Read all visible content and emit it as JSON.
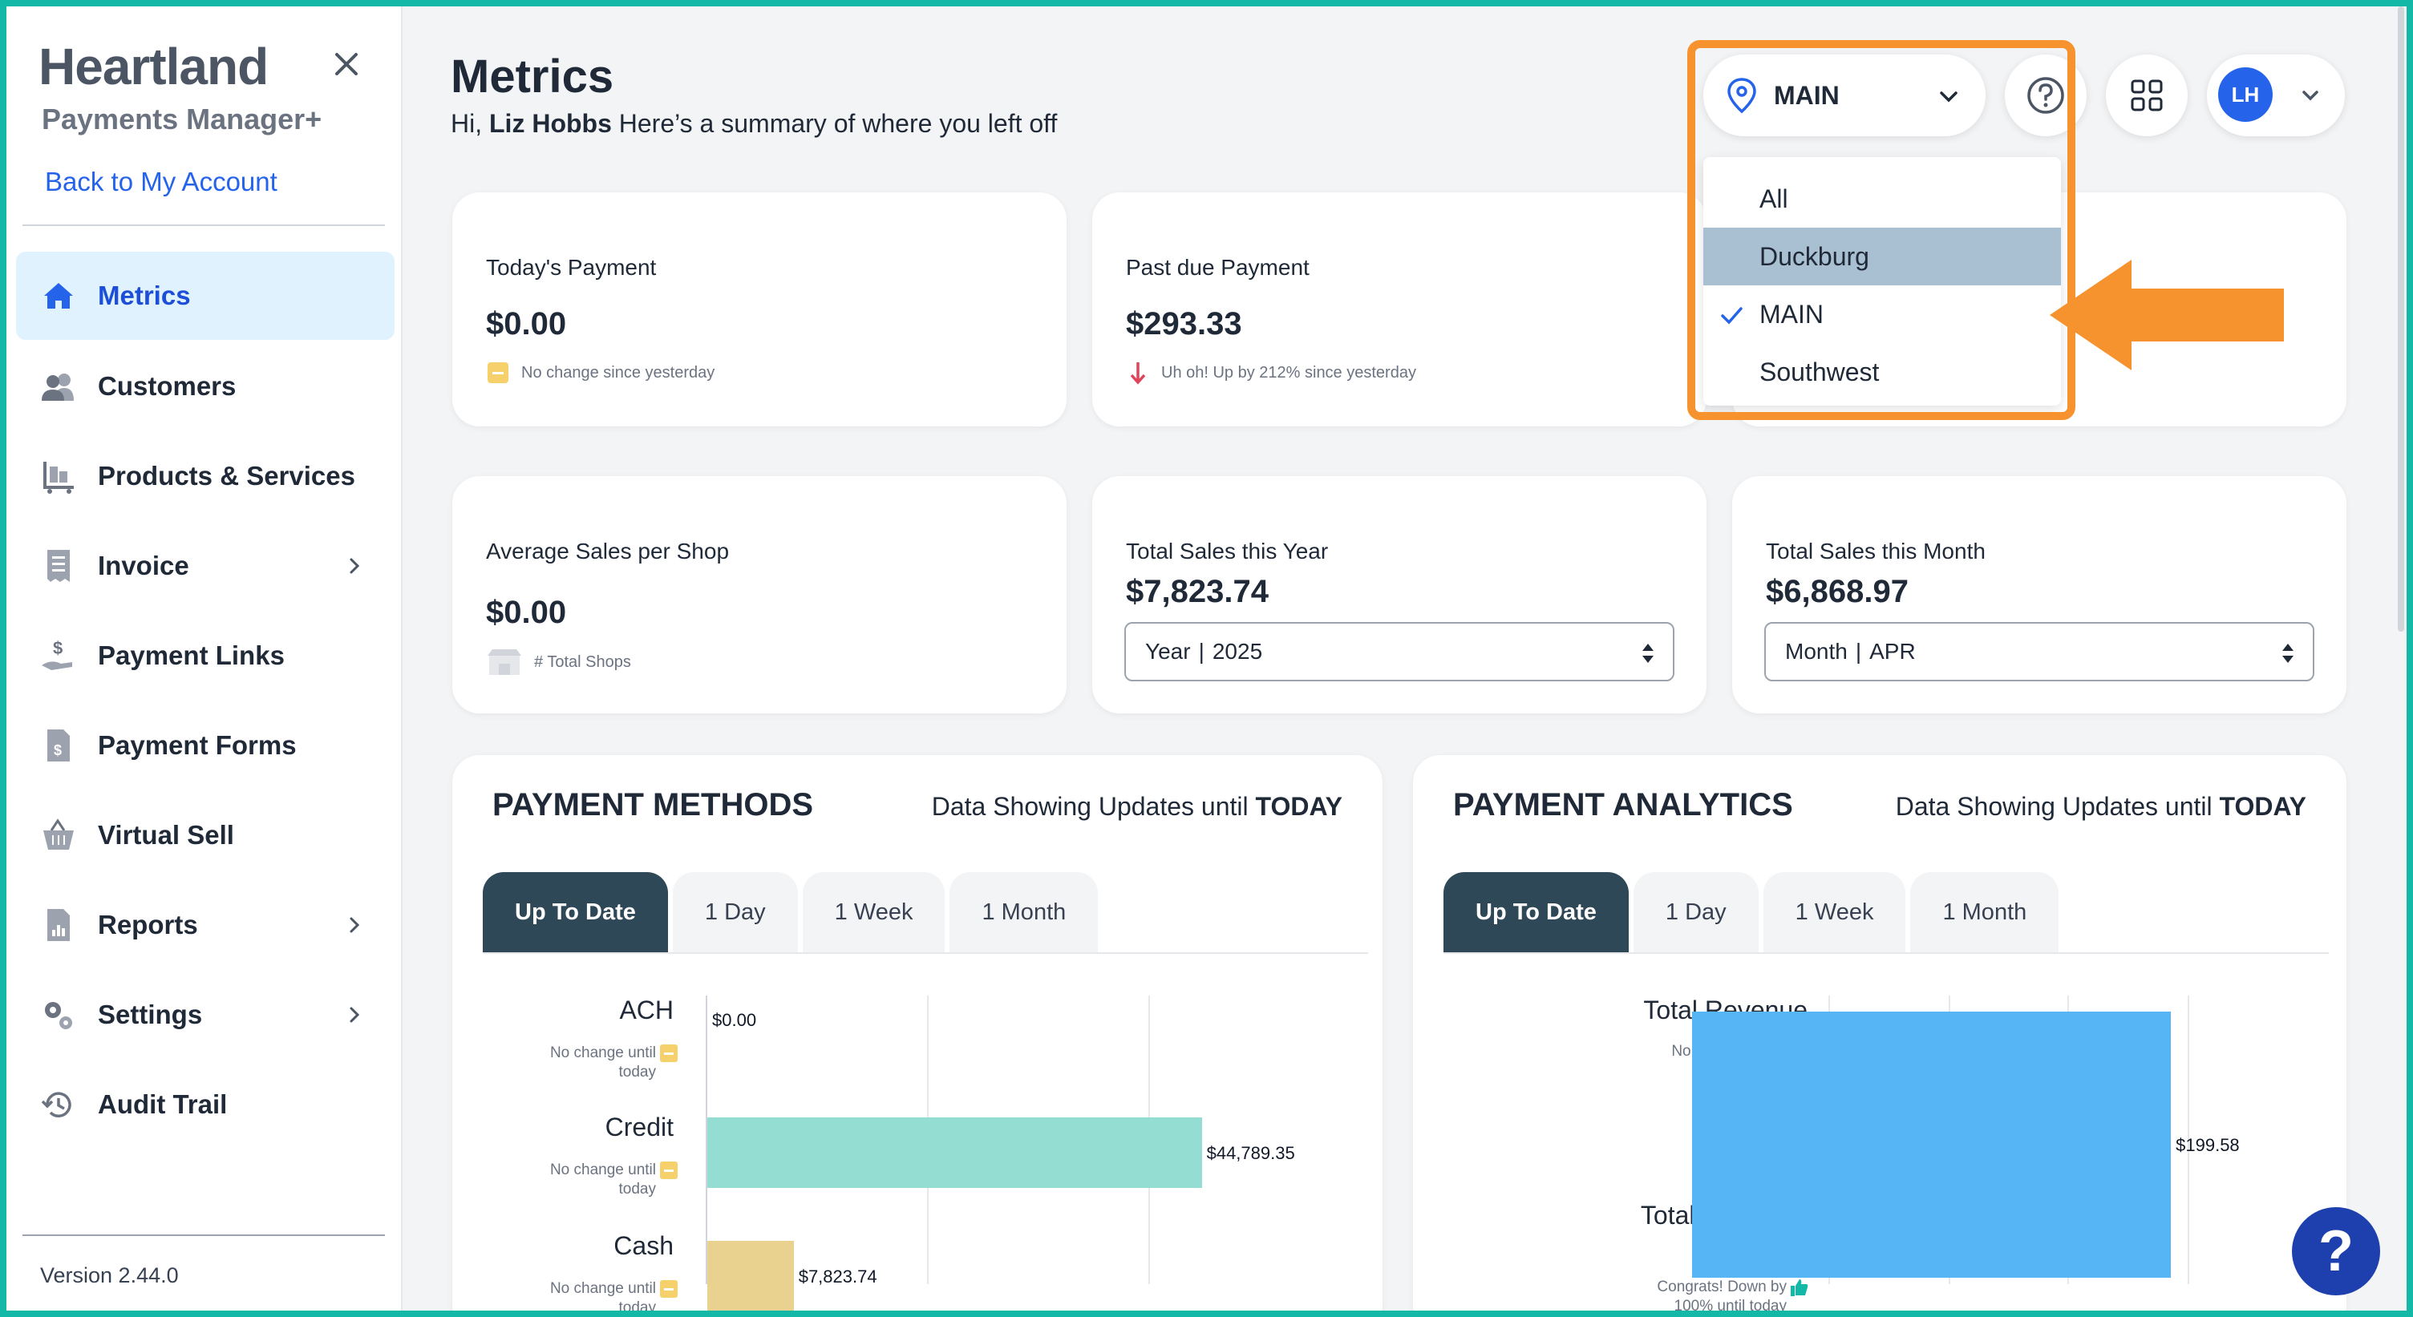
{
  "sidebar": {
    "logo_title": "Heartland",
    "logo_subtitle": "Payments Manager+",
    "back_link": "Back to My Account",
    "items": [
      {
        "label": "Metrics",
        "icon": "home-icon",
        "active": true
      },
      {
        "label": "Customers",
        "icon": "users-icon"
      },
      {
        "label": "Products & Services",
        "icon": "products-icon"
      },
      {
        "label": "Invoice",
        "icon": "invoice-icon",
        "has_children": true
      },
      {
        "label": "Payment Links",
        "icon": "payment-link-icon"
      },
      {
        "label": "Payment Forms",
        "icon": "payment-form-icon"
      },
      {
        "label": "Virtual Sell",
        "icon": "basket-icon"
      },
      {
        "label": "Reports",
        "icon": "reports-icon",
        "has_children": true
      },
      {
        "label": "Settings",
        "icon": "gears-icon",
        "has_children": true
      },
      {
        "label": "Audit Trail",
        "icon": "history-icon"
      }
    ],
    "version": "Version 2.44.0"
  },
  "header": {
    "title": "Metrics",
    "greeting_prefix": "Hi, ",
    "user_name": "Liz Hobbs",
    "greeting_suffix": " Here’s a summary of where you left off",
    "location_selected": "MAIN",
    "avatar_initials": "LH"
  },
  "location_dropdown": {
    "options": [
      "All",
      "Duckburg",
      "MAIN",
      "Southwest"
    ],
    "hovered": "Duckburg",
    "selected": "MAIN"
  },
  "cards": {
    "todays_payment": {
      "label": "Today's Payment",
      "value": "$0.00",
      "note": "No change since yesterday"
    },
    "past_due": {
      "label": "Past due Payment",
      "value": "$293.33",
      "note": "Uh oh! Up by 212% since yesterday"
    },
    "avg_sales": {
      "label": "Average Sales per Shop",
      "value": "$0.00",
      "note": "# Total Shops"
    },
    "sales_year": {
      "label": "Total Sales this Year",
      "value": "$7,823.74",
      "select_label": "Year",
      "select_value": "2025"
    },
    "sales_month": {
      "label": "Total Sales this Month",
      "value": "$6,868.97",
      "select_label": "Month",
      "select_value": "APR"
    }
  },
  "payment_methods": {
    "title": "PAYMENT METHODS",
    "sub_prefix": "Data Showing Updates until ",
    "sub_bold": "TODAY",
    "tabs": [
      "Up To Date",
      "1 Day",
      "1 Week",
      "1 Month"
    ],
    "active_tab": "Up To Date",
    "rows": [
      {
        "label": "ACH",
        "note_line1": "No change until",
        "note_line2": "today",
        "value_label": "$0.00"
      },
      {
        "label": "Credit",
        "note_line1": "No change until",
        "note_line2": "today",
        "value_label": "$44,789.35"
      },
      {
        "label": "Cash",
        "note_line1": "No change until",
        "note_line2": "today",
        "value_label": "$7,823.74"
      }
    ]
  },
  "payment_analytics": {
    "title": "PAYMENT ANALYTICS",
    "sub_prefix": "Data Showing Updates until ",
    "sub_bold": "TODAY",
    "tabs": [
      "Up To Date",
      "1 Day",
      "1 Week",
      "1 Month"
    ],
    "active_tab": "Up To Date",
    "rows": [
      {
        "label": "Total Revenue",
        "note": "No change today",
        "value_label": "$199.58"
      },
      {
        "label_line1": "Total Past Due",
        "label_line2": "payments",
        "note_line1": "Congrats! Down by",
        "note_line2": "100% until today"
      }
    ]
  },
  "chart_data": [
    {
      "type": "bar",
      "categories": [
        "ACH",
        "Credit",
        "Cash"
      ],
      "values": [
        0,
        44789.35,
        7823.74
      ],
      "colors": [
        "#93ddd2",
        "#93ddd2",
        "#e9d18f"
      ],
      "xlim": [
        0,
        60000
      ],
      "grid": true
    },
    {
      "type": "bar",
      "categories": [
        "Total Revenue",
        "Total Past Due payments"
      ],
      "values": [
        199.58,
        199.58
      ],
      "colors": [
        "#55b5f5"
      ],
      "xlim": [
        0,
        250
      ],
      "grid": true
    }
  ],
  "colors": {
    "accent": "#2563eb",
    "teal_border": "#14b8a6",
    "annotation_orange": "#f7932f",
    "tab_active": "#2f4858"
  },
  "help_fab": "?"
}
